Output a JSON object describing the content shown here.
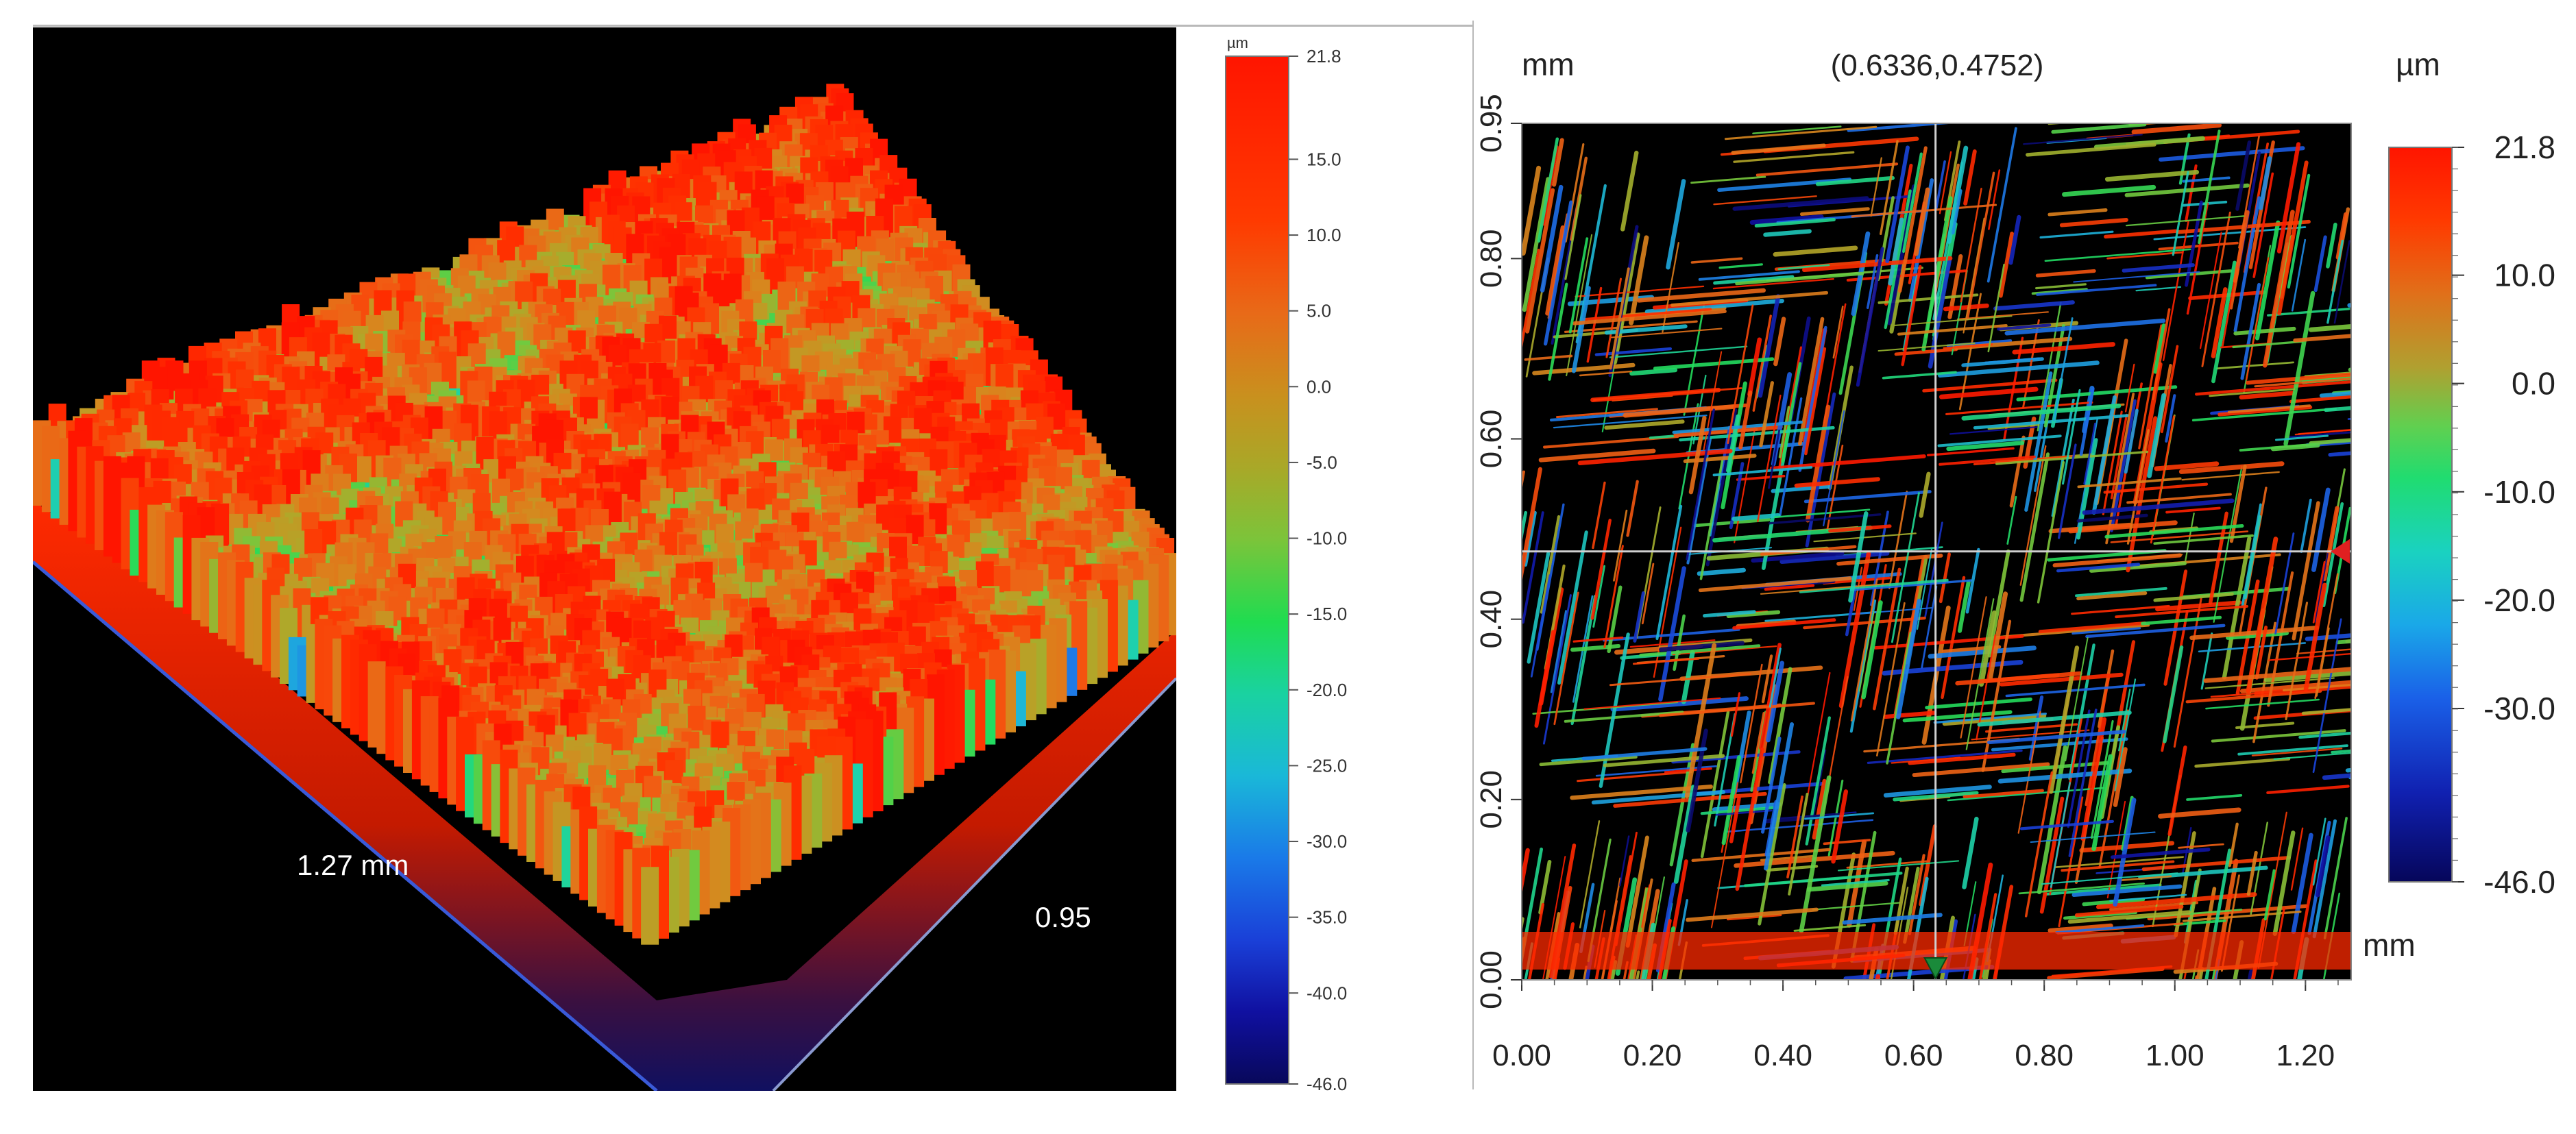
{
  "colors": {
    "scale_top": "#ff1a00",
    "scale_orange": "#e8741a",
    "scale_olive": "#b8a230",
    "scale_green": "#22d860",
    "scale_cyan": "#1fc9c9",
    "scale_blue": "#1a58e8",
    "scale_bottom": "#0a0a6a",
    "surface_background": "#000000",
    "crosshair": "#cfcfcf"
  },
  "chart_data": [
    {
      "type": "heatmap",
      "subtype": "3d-surface",
      "title": "",
      "dimensions": {
        "x_extent_label": "1.27 mm",
        "y_extent_label": "0.95"
      },
      "colorbar": {
        "unit": "µm",
        "range": [
          -46.0,
          21.8
        ],
        "ticks": [
          "21.8",
          "15.0",
          "10.0",
          "5.0",
          "0.0",
          "-5.0",
          "-10.0",
          "-15.0",
          "-20.0",
          "-25.0",
          "-30.0",
          "-35.0",
          "-40.0",
          "-46.0"
        ]
      },
      "background": "black"
    },
    {
      "type": "heatmap",
      "subtype": "2d-height-map",
      "title": "",
      "cursor_readout": "(0.6336,0.4752)",
      "cursor": {
        "x": 0.6336,
        "y": 0.4752
      },
      "x_axis": {
        "unit_label": "mm",
        "range": [
          0.0,
          1.27
        ],
        "ticks": [
          "0.00",
          "0.20",
          "0.40",
          "0.60",
          "0.80",
          "1.00",
          "1.20"
        ]
      },
      "y_axis": {
        "unit_label": "mm",
        "range": [
          0.0,
          0.95
        ],
        "ticks": [
          "0.00",
          "0.20",
          "0.40",
          "0.60",
          "0.80",
          "0.95"
        ]
      },
      "colorbar": {
        "unit": "µm",
        "range": [
          -46.0,
          21.8
        ],
        "ticks": [
          "21.8",
          "10.0",
          "0.0",
          "-10.0",
          "-20.0",
          "-30.0",
          "-46.0"
        ]
      },
      "background": "black"
    }
  ]
}
